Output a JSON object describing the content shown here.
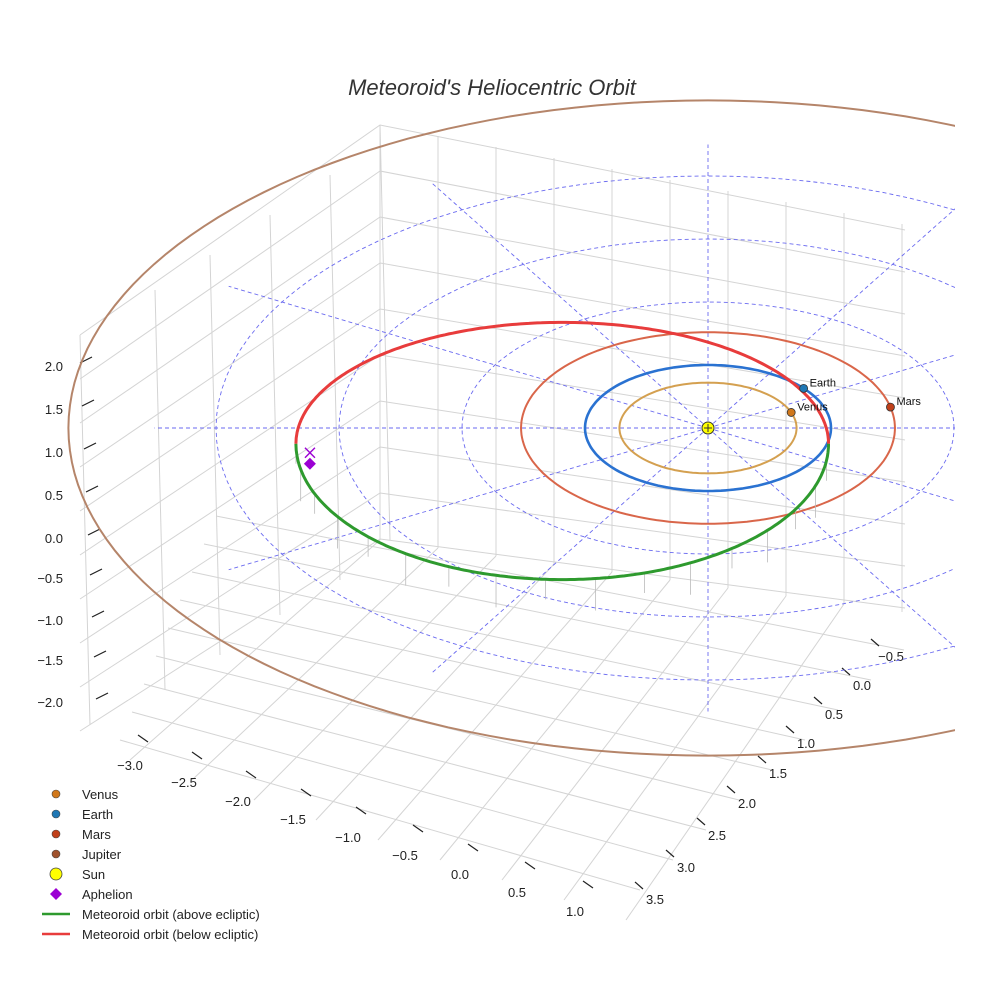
{
  "chart_data": {
    "type": "line",
    "title": "Meteoroid's Heliocentric Orbit",
    "projection": "3d",
    "axes": {
      "x": {
        "ticks": [
          "−3.0",
          "−2.5",
          "−2.0",
          "−1.5",
          "−1.0",
          "−0.5",
          "0.0",
          "0.5",
          "1.0"
        ]
      },
      "y": {
        "ticks": [
          "−0.5",
          "0.0",
          "0.5",
          "1.0",
          "1.5",
          "2.0",
          "2.5",
          "3.0",
          "3.5"
        ]
      },
      "z": {
        "ticks": [
          "2.0",
          "1.5",
          "1.0",
          "0.5",
          "0.0",
          "−0.5",
          "−1.0",
          "−1.5",
          "−2.0"
        ]
      }
    },
    "planets": [
      {
        "name": "Venus",
        "orbit_radius_au": 0.72,
        "color": "#d4a050",
        "marker_color": "#d1781b",
        "label": "Venus"
      },
      {
        "name": "Earth",
        "orbit_radius_au": 1.0,
        "color": "#2a72d1",
        "marker_color": "#1f77b4",
        "label": "Earth"
      },
      {
        "name": "Mars",
        "orbit_radius_au": 1.52,
        "color": "#d9664a",
        "marker_color": "#c0401a",
        "label": "Mars"
      },
      {
        "name": "Jupiter",
        "orbit_radius_au": 5.2,
        "color": "#b5856a",
        "marker_color": "#a0522d",
        "label": ""
      }
    ],
    "sun": {
      "name": "Sun",
      "color": "#ffff00"
    },
    "meteoroid": {
      "perihelion_au": 0.98,
      "aphelion_au": 3.35,
      "above_color": "#2e9a2e",
      "below_color": "#e83c3c"
    },
    "aphelion_color": "#9b00d3",
    "legend": [
      {
        "label": "Venus",
        "kind": "dot",
        "color": "#d1781b"
      },
      {
        "label": "Earth",
        "kind": "dot",
        "color": "#1f77b4"
      },
      {
        "label": "Mars",
        "kind": "dot",
        "color": "#c0401a"
      },
      {
        "label": "Jupiter",
        "kind": "dot",
        "color": "#a0522d"
      },
      {
        "label": "Sun",
        "kind": "bigdot",
        "color": "#ffff00"
      },
      {
        "label": "Aphelion",
        "kind": "diamond",
        "color": "#9b00d3"
      },
      {
        "label": "Meteoroid orbit (above ecliptic)",
        "kind": "line",
        "color": "#2e9a2e"
      },
      {
        "label": "Meteoroid orbit (below ecliptic)",
        "kind": "line",
        "color": "#e83c3c"
      }
    ]
  }
}
